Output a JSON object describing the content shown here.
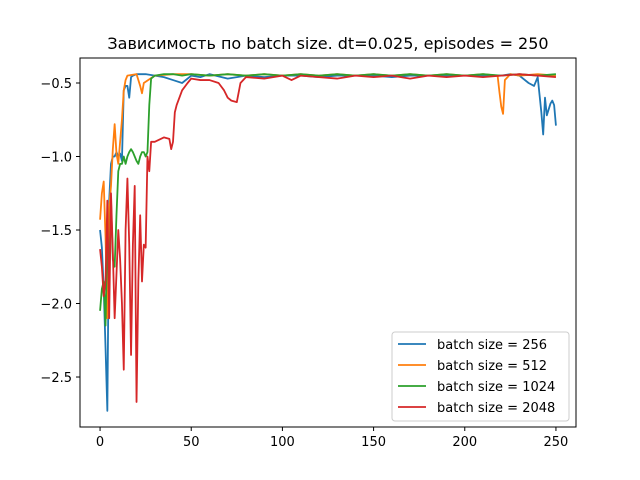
{
  "chart_data": {
    "type": "line",
    "title": "Зависимость по batch size. dt=0.025, episodes = 250",
    "xlabel": "",
    "ylabel": "",
    "xlim": [
      -11,
      261
    ],
    "ylim": [
      -2.84,
      -0.33
    ],
    "x_ticks": [
      0,
      50,
      100,
      150,
      200,
      250
    ],
    "y_ticks": [
      -2.5,
      -2.0,
      -1.5,
      -1.0,
      -0.5
    ],
    "y_tick_labels": [
      "−2.5",
      "−2.0",
      "−1.5",
      "−1.0",
      "−0.5"
    ],
    "x_tick_labels": [
      "0",
      "50",
      "100",
      "150",
      "200",
      "250"
    ],
    "grid": false,
    "legend_position": "lower-right",
    "series": [
      {
        "name": "batch size = 256",
        "color": "#1f77b4",
        "points": [
          [
            0,
            -1.5
          ],
          [
            1,
            -1.62
          ],
          [
            2,
            -1.9
          ],
          [
            3,
            -2.3
          ],
          [
            4,
            -2.73
          ],
          [
            5,
            -1.3
          ],
          [
            6,
            -1.05
          ],
          [
            7,
            -1.0
          ],
          [
            8,
            -1.0
          ],
          [
            9,
            -0.97
          ],
          [
            10,
            -1.0
          ],
          [
            11,
            -0.98
          ],
          [
            12,
            -1.03
          ],
          [
            13,
            -0.55
          ],
          [
            14,
            -0.52
          ],
          [
            15,
            -0.52
          ],
          [
            16,
            -0.6
          ],
          [
            17,
            -0.46
          ],
          [
            18,
            -0.45
          ],
          [
            20,
            -0.44
          ],
          [
            25,
            -0.44
          ],
          [
            30,
            -0.45
          ],
          [
            35,
            -0.46
          ],
          [
            40,
            -0.48
          ],
          [
            45,
            -0.5
          ],
          [
            50,
            -0.45
          ],
          [
            55,
            -0.46
          ],
          [
            60,
            -0.44
          ],
          [
            70,
            -0.47
          ],
          [
            80,
            -0.45
          ],
          [
            90,
            -0.46
          ],
          [
            100,
            -0.45
          ],
          [
            110,
            -0.45
          ],
          [
            120,
            -0.46
          ],
          [
            130,
            -0.45
          ],
          [
            140,
            -0.45
          ],
          [
            150,
            -0.45
          ],
          [
            160,
            -0.46
          ],
          [
            170,
            -0.45
          ],
          [
            180,
            -0.45
          ],
          [
            190,
            -0.45
          ],
          [
            200,
            -0.45
          ],
          [
            210,
            -0.45
          ],
          [
            220,
            -0.45
          ],
          [
            225,
            -0.44
          ],
          [
            230,
            -0.45
          ],
          [
            235,
            -0.5
          ],
          [
            238,
            -0.52
          ],
          [
            240,
            -0.46
          ],
          [
            242,
            -0.7
          ],
          [
            243,
            -0.85
          ],
          [
            244,
            -0.6
          ],
          [
            245,
            -0.72
          ],
          [
            246,
            -0.68
          ],
          [
            247,
            -0.64
          ],
          [
            248,
            -0.62
          ],
          [
            249,
            -0.65
          ],
          [
            250,
            -0.79
          ]
        ]
      },
      {
        "name": "batch size = 512",
        "color": "#ff7f0e",
        "points": [
          [
            0,
            -1.43
          ],
          [
            1,
            -1.25
          ],
          [
            2,
            -1.17
          ],
          [
            3,
            -1.55
          ],
          [
            4,
            -2.1
          ],
          [
            5,
            -1.35
          ],
          [
            6,
            -1.2
          ],
          [
            7,
            -0.95
          ],
          [
            8,
            -0.78
          ],
          [
            9,
            -0.98
          ],
          [
            10,
            -1.05
          ],
          [
            11,
            -0.9
          ],
          [
            12,
            -0.75
          ],
          [
            13,
            -0.55
          ],
          [
            14,
            -0.48
          ],
          [
            15,
            -0.45
          ],
          [
            20,
            -0.44
          ],
          [
            22,
            -0.52
          ],
          [
            23,
            -0.57
          ],
          [
            24,
            -0.5
          ],
          [
            30,
            -0.45
          ],
          [
            40,
            -0.44
          ],
          [
            50,
            -0.44
          ],
          [
            60,
            -0.45
          ],
          [
            70,
            -0.44
          ],
          [
            80,
            -0.45
          ],
          [
            90,
            -0.44
          ],
          [
            100,
            -0.45
          ],
          [
            110,
            -0.44
          ],
          [
            120,
            -0.45
          ],
          [
            130,
            -0.44
          ],
          [
            140,
            -0.45
          ],
          [
            150,
            -0.44
          ],
          [
            160,
            -0.45
          ],
          [
            170,
            -0.44
          ],
          [
            180,
            -0.45
          ],
          [
            190,
            -0.44
          ],
          [
            200,
            -0.45
          ],
          [
            210,
            -0.44
          ],
          [
            218,
            -0.45
          ],
          [
            219,
            -0.56
          ],
          [
            220,
            -0.66
          ],
          [
            221,
            -0.71
          ],
          [
            222,
            -0.48
          ],
          [
            225,
            -0.44
          ],
          [
            230,
            -0.45
          ],
          [
            240,
            -0.44
          ],
          [
            250,
            -0.45
          ]
        ]
      },
      {
        "name": "batch size = 1024",
        "color": "#2ca02c",
        "points": [
          [
            0,
            -2.05
          ],
          [
            1,
            -1.9
          ],
          [
            2,
            -1.85
          ],
          [
            3,
            -2.15
          ],
          [
            4,
            -1.5
          ],
          [
            5,
            -1.85
          ],
          [
            6,
            -1.3
          ],
          [
            7,
            -1.7
          ],
          [
            8,
            -1.75
          ],
          [
            9,
            -1.4
          ],
          [
            10,
            -1.1
          ],
          [
            11,
            -1.05
          ],
          [
            12,
            -1.05
          ],
          [
            13,
            -1.0
          ],
          [
            14,
            -1.05
          ],
          [
            15,
            -1.0
          ],
          [
            16,
            -0.97
          ],
          [
            17,
            -0.95
          ],
          [
            18,
            -0.97
          ],
          [
            19,
            -1.0
          ],
          [
            20,
            -1.03
          ],
          [
            21,
            -1.05
          ],
          [
            22,
            -1.0
          ],
          [
            23,
            -0.97
          ],
          [
            24,
            -0.97
          ],
          [
            25,
            -1.0
          ],
          [
            26,
            -0.97
          ],
          [
            27,
            -0.65
          ],
          [
            28,
            -0.47
          ],
          [
            30,
            -0.45
          ],
          [
            35,
            -0.44
          ],
          [
            40,
            -0.44
          ],
          [
            45,
            -0.45
          ],
          [
            50,
            -0.44
          ],
          [
            60,
            -0.45
          ],
          [
            70,
            -0.44
          ],
          [
            80,
            -0.45
          ],
          [
            90,
            -0.44
          ],
          [
            100,
            -0.45
          ],
          [
            110,
            -0.44
          ],
          [
            120,
            -0.45
          ],
          [
            130,
            -0.44
          ],
          [
            140,
            -0.45
          ],
          [
            150,
            -0.44
          ],
          [
            160,
            -0.45
          ],
          [
            170,
            -0.44
          ],
          [
            180,
            -0.45
          ],
          [
            190,
            -0.44
          ],
          [
            200,
            -0.45
          ],
          [
            210,
            -0.44
          ],
          [
            220,
            -0.45
          ],
          [
            230,
            -0.44
          ],
          [
            240,
            -0.45
          ],
          [
            250,
            -0.44
          ]
        ]
      },
      {
        "name": "batch size = 2048",
        "color": "#d62728",
        "points": [
          [
            0,
            -1.63
          ],
          [
            1,
            -1.75
          ],
          [
            2,
            -1.95
          ],
          [
            3,
            -1.85
          ],
          [
            4,
            -1.3
          ],
          [
            5,
            -2.1
          ],
          [
            6,
            -1.25
          ],
          [
            7,
            -1.65
          ],
          [
            8,
            -2.1
          ],
          [
            9,
            -1.8
          ],
          [
            10,
            -1.5
          ],
          [
            11,
            -1.7
          ],
          [
            12,
            -2.0
          ],
          [
            13,
            -2.45
          ],
          [
            14,
            -1.5
          ],
          [
            15,
            -1.15
          ],
          [
            16,
            -1.6
          ],
          [
            17,
            -2.35
          ],
          [
            18,
            -1.6
          ],
          [
            19,
            -1.2
          ],
          [
            20,
            -2.67
          ],
          [
            21,
            -1.85
          ],
          [
            22,
            -1.4
          ],
          [
            23,
            -1.85
          ],
          [
            24,
            -1.6
          ],
          [
            25,
            -1.62
          ],
          [
            26,
            -1.0
          ],
          [
            27,
            -1.1
          ],
          [
            28,
            -0.9
          ],
          [
            30,
            -0.9
          ],
          [
            35,
            -0.87
          ],
          [
            38,
            -0.88
          ],
          [
            39,
            -0.95
          ],
          [
            40,
            -0.9
          ],
          [
            41,
            -0.7
          ],
          [
            42,
            -0.65
          ],
          [
            45,
            -0.55
          ],
          [
            48,
            -0.5
          ],
          [
            50,
            -0.47
          ],
          [
            55,
            -0.48
          ],
          [
            60,
            -0.48
          ],
          [
            65,
            -0.5
          ],
          [
            68,
            -0.55
          ],
          [
            70,
            -0.6
          ],
          [
            72,
            -0.62
          ],
          [
            75,
            -0.63
          ],
          [
            77,
            -0.5
          ],
          [
            80,
            -0.46
          ],
          [
            90,
            -0.47
          ],
          [
            100,
            -0.45
          ],
          [
            105,
            -0.48
          ],
          [
            110,
            -0.45
          ],
          [
            120,
            -0.46
          ],
          [
            130,
            -0.47
          ],
          [
            140,
            -0.45
          ],
          [
            150,
            -0.46
          ],
          [
            160,
            -0.45
          ],
          [
            170,
            -0.47
          ],
          [
            180,
            -0.45
          ],
          [
            190,
            -0.46
          ],
          [
            200,
            -0.45
          ],
          [
            210,
            -0.46
          ],
          [
            220,
            -0.45
          ],
          [
            230,
            -0.44
          ],
          [
            240,
            -0.45
          ],
          [
            250,
            -0.46
          ]
        ]
      }
    ]
  }
}
